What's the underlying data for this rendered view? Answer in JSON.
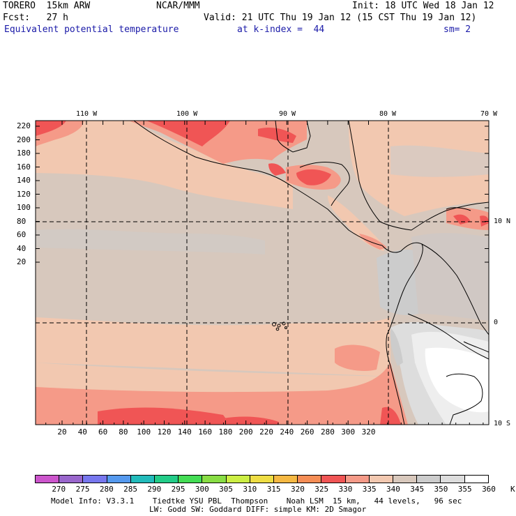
{
  "header": {
    "model": "TORERO  15km ARW",
    "org": "NCAR/MMM",
    "init": "Init: 18 UTC Wed 18 Jan 12",
    "fcst": "Fcst:   27 h",
    "valid": "Valid: 21 UTC Thu 19 Jan 12 (15 CST Thu 19 Jan 12)",
    "field": "Equivalent potential temperature",
    "level": "at k-index =  44",
    "smooth": "sm= 2"
  },
  "map": {
    "lon_labels": [
      "110 W",
      "100 W",
      "90 W",
      "80 W",
      "70 W"
    ],
    "lat_labels": [
      "10 N",
      "0",
      "10 S"
    ],
    "y_ticks": [
      "220",
      "200",
      "180",
      "160",
      "140",
      "120",
      "100",
      "80",
      "60",
      "40",
      "20"
    ],
    "x_ticks": [
      "20",
      "40",
      "60",
      "80",
      "100",
      "120",
      "140",
      "160",
      "180",
      "200",
      "220",
      "240",
      "260",
      "280",
      "300",
      "320"
    ]
  },
  "colorbar": {
    "labels": [
      "270",
      "275",
      "280",
      "285",
      "290",
      "295",
      "300",
      "305",
      "310",
      "315",
      "320",
      "325",
      "330",
      "335",
      "340",
      "345",
      "350",
      "355",
      "360",
      "K"
    ],
    "colors": [
      "#cc55cc",
      "#9966cc",
      "#7777ee",
      "#5599ee",
      "#22bbbb",
      "#22cc88",
      "#44dd55",
      "#88dd44",
      "#ccee44",
      "#eedd44",
      "#f5b842",
      "#f58d55",
      "#f05555",
      "#f59a88",
      "#f2c8b0",
      "#d8c8bc",
      "#cccccc",
      "#dddddd",
      "#ffffff"
    ]
  },
  "footer": {
    "line1": "Model Info: V3.3.1    Tiedtke YSU PBL  Thompson    Noah LSM  15 km,   44 levels,   96 sec",
    "line2": "LW: Godd SW: Goddard DIFF: simple KM: 2D Smagor"
  }
}
